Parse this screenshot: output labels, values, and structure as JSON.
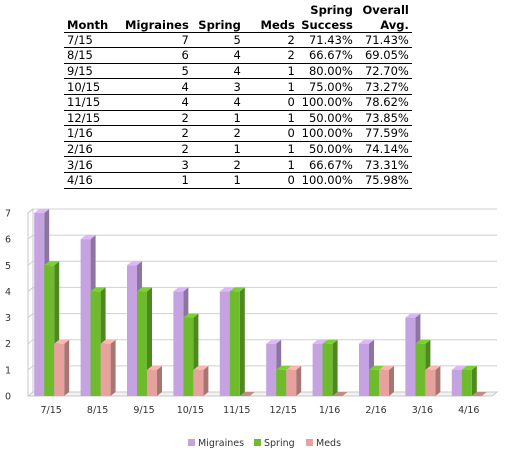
{
  "table": {
    "headers": {
      "month": "Month",
      "migraines": "Migraines",
      "spring": "Spring",
      "meds": "Meds",
      "success_top": "Spring",
      "success_bottom": "Success",
      "avg_top": "Overall",
      "avg_bottom": "Avg."
    },
    "rows": [
      {
        "month": "7/15",
        "migraines": "7",
        "spring": "5",
        "meds": "2",
        "success": "71.43%",
        "avg": "71.43%"
      },
      {
        "month": "8/15",
        "migraines": "6",
        "spring": "4",
        "meds": "2",
        "success": "66.67%",
        "avg": "69.05%"
      },
      {
        "month": "9/15",
        "migraines": "5",
        "spring": "4",
        "meds": "1",
        "success": "80.00%",
        "avg": "72.70%"
      },
      {
        "month": "10/15",
        "migraines": "4",
        "spring": "3",
        "meds": "1",
        "success": "75.00%",
        "avg": "73.27%"
      },
      {
        "month": "11/15",
        "migraines": "4",
        "spring": "4",
        "meds": "0",
        "success": "100.00%",
        "avg": "78.62%"
      },
      {
        "month": "12/15",
        "migraines": "2",
        "spring": "1",
        "meds": "1",
        "success": "50.00%",
        "avg": "73.85%"
      },
      {
        "month": "1/16",
        "migraines": "2",
        "spring": "2",
        "meds": "0",
        "success": "100.00%",
        "avg": "77.59%"
      },
      {
        "month": "2/16",
        "migraines": "2",
        "spring": "1",
        "meds": "1",
        "success": "50.00%",
        "avg": "74.14%"
      },
      {
        "month": "3/16",
        "migraines": "3",
        "spring": "2",
        "meds": "1",
        "success": "66.67%",
        "avg": "73.31%"
      },
      {
        "month": "4/16",
        "migraines": "1",
        "spring": "1",
        "meds": "0",
        "success": "100.00%",
        "avg": "75.98%"
      }
    ]
  },
  "chart_data": {
    "type": "bar",
    "style": "3d-clustered-column",
    "categories": [
      "7/15",
      "8/15",
      "9/15",
      "10/15",
      "11/15",
      "12/15",
      "1/16",
      "2/16",
      "3/16",
      "4/16"
    ],
    "series": [
      {
        "name": "Migraines",
        "color": "#c4a3e0",
        "values": [
          7,
          6,
          5,
          4,
          4,
          2,
          2,
          2,
          3,
          1
        ]
      },
      {
        "name": "Spring",
        "color": "#6ebb2e",
        "values": [
          5,
          4,
          4,
          3,
          4,
          1,
          2,
          1,
          2,
          1
        ]
      },
      {
        "name": "Meds",
        "color": "#e8a29e",
        "values": [
          2,
          2,
          1,
          1,
          0,
          1,
          0,
          1,
          1,
          0
        ]
      }
    ],
    "ylim": [
      0,
      7
    ],
    "yticks": [
      "0",
      "1",
      "2",
      "3",
      "4",
      "5",
      "6",
      "7"
    ],
    "grid": true,
    "legend": "bottom"
  }
}
